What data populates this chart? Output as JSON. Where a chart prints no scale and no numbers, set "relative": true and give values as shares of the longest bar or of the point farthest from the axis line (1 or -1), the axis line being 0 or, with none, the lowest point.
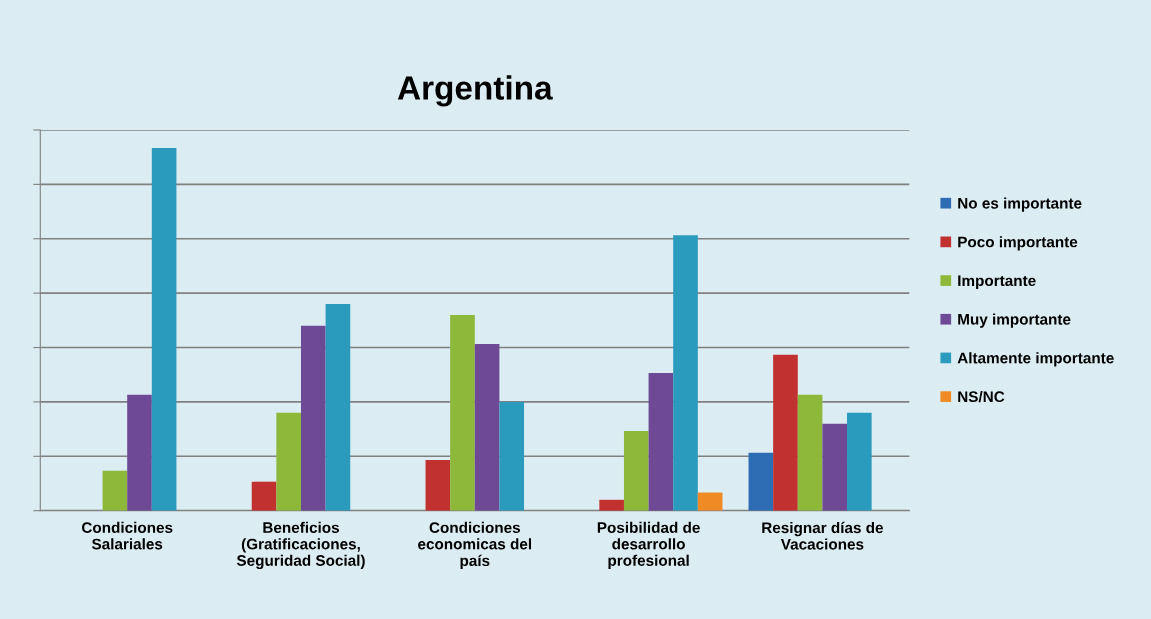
{
  "chart_data": {
    "type": "bar",
    "title": "Argentina",
    "relative": true,
    "grid": "y",
    "legend": "right",
    "categories": [
      "Condiciones\nSalariales",
      "Beneficios\n(Gratificaciones,\nSeguridad Social)",
      "Condiciones\neconomicas del\npaís",
      "Posibilidad de\ndesarrollo\nprofesional",
      "Resignar días de\nVacaciones"
    ],
    "series": [
      {
        "name": "No es importante",
        "color": "#2e6db4",
        "values": [
          null,
          null,
          null,
          null,
          0.16
        ]
      },
      {
        "name": "Poco importante",
        "color": "#c0312f",
        "values": [
          null,
          0.08,
          0.14,
          0.03,
          0.43
        ]
      },
      {
        "name": "Importante",
        "color": "#8db83a",
        "values": [
          0.11,
          0.27,
          0.54,
          0.22,
          0.32
        ]
      },
      {
        "name": "Muy importante",
        "color": "#6e4a96",
        "values": [
          0.32,
          0.51,
          0.46,
          0.38,
          0.24
        ]
      },
      {
        "name": "Altamente importante",
        "color": "#2b9bbd",
        "values": [
          1,
          0.57,
          0.3,
          0.76,
          0.27
        ]
      },
      {
        "name": "NS/NC",
        "color": "#f08a24",
        "values": [
          null,
          null,
          null,
          0.05,
          null
        ]
      }
    ]
  }
}
